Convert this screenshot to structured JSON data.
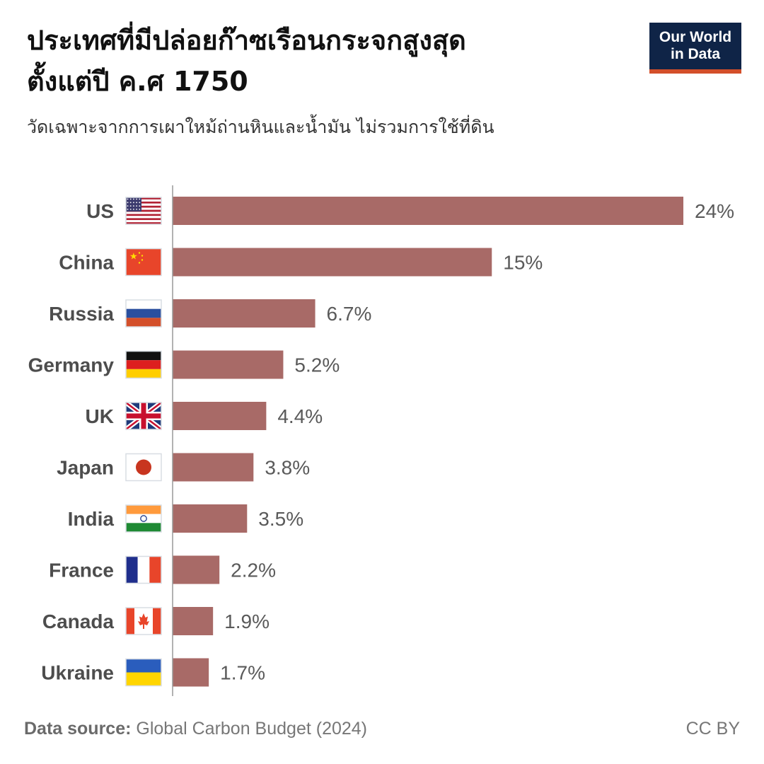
{
  "header": {
    "title_line1": "ประเทศที่มีปล่อยก๊าซเรือนกระจกสูงสุด",
    "title_line2": "ตั้งแต่ปี ค.ศ 1750",
    "subtitle": "วัดเฉพาะจากการเผาใหม้ถ่านหินและน้ำมัน ไม่รวมการใช้ที่ดิน"
  },
  "logo": {
    "line1": "Our World",
    "line2": "in Data"
  },
  "footer": {
    "source_label": "Data source:",
    "source_text": "Global Carbon Budget (2024)",
    "license": "CC BY"
  },
  "colors": {
    "bar": "#a86a67",
    "axis": "#999999",
    "label": "#4d4d4d",
    "value": "#5a5a5a",
    "logo_bg": "#0f2447",
    "logo_accent": "#d34f2a"
  },
  "chart_data": {
    "type": "bar",
    "orientation": "horizontal",
    "categories": [
      "US",
      "China",
      "Russia",
      "Germany",
      "UK",
      "Japan",
      "India",
      "France",
      "Canada",
      "Ukraine"
    ],
    "values": [
      24,
      15,
      6.7,
      5.2,
      4.4,
      3.8,
      3.5,
      2.2,
      1.9,
      1.7
    ],
    "value_labels": [
      "24%",
      "15%",
      "6.7%",
      "5.2%",
      "4.4%",
      "3.8%",
      "3.5%",
      "2.2%",
      "1.9%",
      "1.7%"
    ],
    "flags": [
      "us-flag-icon",
      "china-flag-icon",
      "russia-flag-icon",
      "germany-flag-icon",
      "uk-flag-icon",
      "japan-flag-icon",
      "india-flag-icon",
      "france-flag-icon",
      "canada-flag-icon",
      "ukraine-flag-icon"
    ],
    "xlim": [
      0,
      24
    ],
    "grid": false
  }
}
